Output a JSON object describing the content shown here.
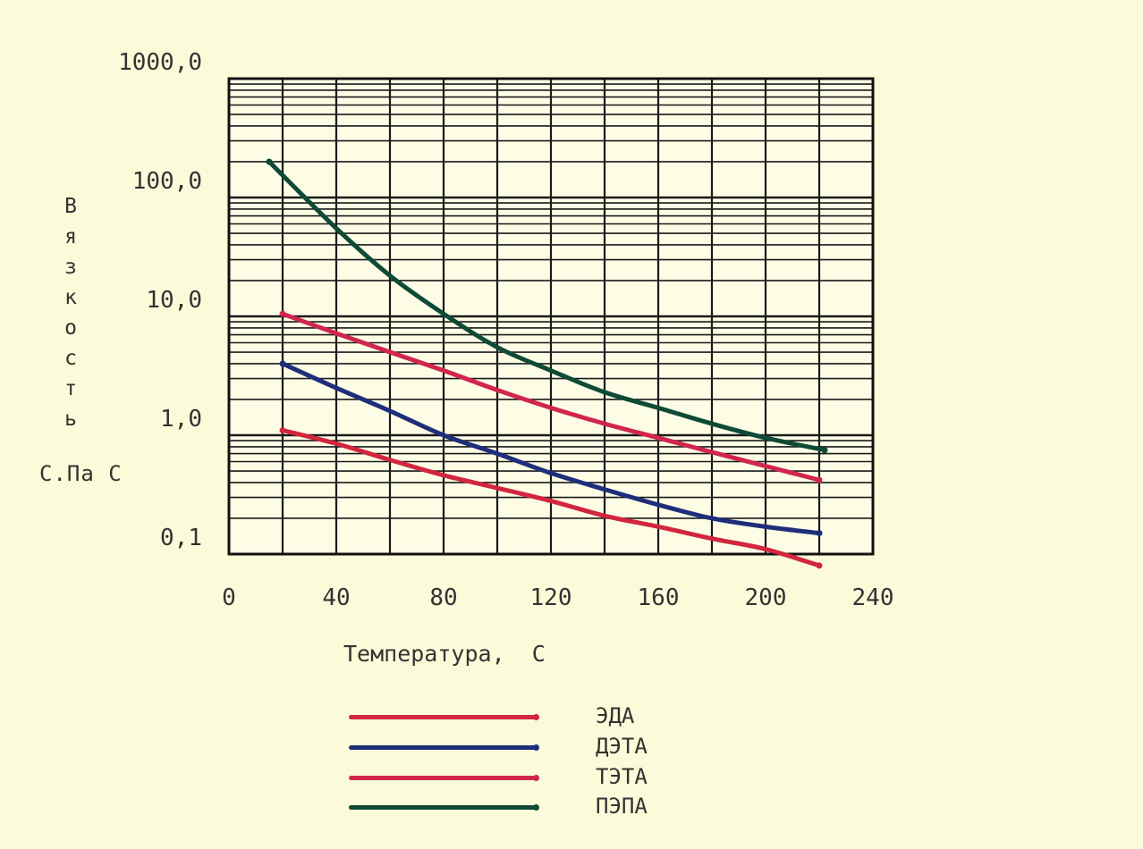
{
  "chart_data": {
    "type": "line",
    "xlabel": "Температура,  С",
    "ylabel_letters": [
      "В",
      "я",
      "з",
      "к",
      "о",
      "с",
      "т",
      "ь"
    ],
    "yunit": "С.Па С",
    "xlim": [
      0,
      240
    ],
    "ylim": [
      0.1,
      1000
    ],
    "yscale": "log",
    "x_ticks": [
      "0",
      "40",
      "80",
      "120",
      "160",
      "200",
      "240"
    ],
    "x_tick_values": [
      0,
      40,
      80,
      120,
      160,
      200,
      240
    ],
    "y_ticks": [
      "1000,0",
      "100,0",
      "10,0",
      "1,0",
      "0,1"
    ],
    "y_tick_values": [
      1000,
      100,
      10,
      1,
      0.1
    ],
    "grid": true,
    "legend_position": "bottom",
    "series": [
      {
        "name": "ЭДА",
        "color": "#d1263e",
        "points": [
          [
            20,
            1.1
          ],
          [
            40,
            0.85
          ],
          [
            60,
            0.62
          ],
          [
            80,
            0.46
          ],
          [
            100,
            0.36
          ],
          [
            120,
            0.28
          ],
          [
            140,
            0.21
          ],
          [
            160,
            0.17
          ],
          [
            180,
            0.135
          ],
          [
            200,
            0.11
          ],
          [
            220,
            0.08
          ]
        ]
      },
      {
        "name": "ДЭТА",
        "color": "#1f2e7a",
        "points": [
          [
            20,
            4.0
          ],
          [
            40,
            2.5
          ],
          [
            60,
            1.6
          ],
          [
            80,
            1.0
          ],
          [
            100,
            0.7
          ],
          [
            120,
            0.48
          ],
          [
            140,
            0.35
          ],
          [
            160,
            0.26
          ],
          [
            180,
            0.2
          ],
          [
            200,
            0.17
          ],
          [
            220,
            0.15
          ]
        ]
      },
      {
        "name": "ТЭТА",
        "color": "#d0264e",
        "points": [
          [
            20,
            10.5
          ],
          [
            40,
            7.2
          ],
          [
            60,
            5.0
          ],
          [
            80,
            3.5
          ],
          [
            100,
            2.4
          ],
          [
            120,
            1.7
          ],
          [
            140,
            1.25
          ],
          [
            160,
            0.95
          ],
          [
            180,
            0.72
          ],
          [
            200,
            0.55
          ],
          [
            220,
            0.42
          ]
        ]
      },
      {
        "name": "ПЭПА",
        "color": "#0e4a35",
        "points": [
          [
            15,
            200
          ],
          [
            40,
            55
          ],
          [
            60,
            22
          ],
          [
            80,
            10.5
          ],
          [
            100,
            5.5
          ],
          [
            120,
            3.5
          ],
          [
            140,
            2.3
          ],
          [
            160,
            1.7
          ],
          [
            180,
            1.25
          ],
          [
            200,
            0.95
          ],
          [
            222,
            0.75
          ]
        ]
      }
    ]
  }
}
